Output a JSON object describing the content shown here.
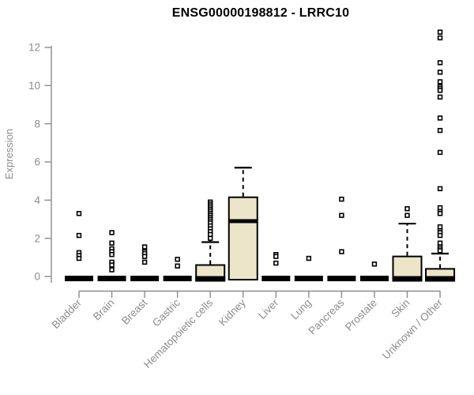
{
  "title": "ENSG00000198812 - LRRC10",
  "colors": {
    "background": "#ffffff",
    "box_fill": "#ece5c9",
    "box_stroke": "#000000",
    "median": "#000000",
    "whisker": "#000000",
    "outlier_stroke": "#000000",
    "outlier_fill": "#ffffff",
    "axis": "#8c8c8c",
    "tick_label": "#8c8c8c",
    "title_color": "#000000"
  },
  "chart_data": {
    "type": "boxplot",
    "title": "ENSG00000198812 - LRRC10",
    "xlabel": "",
    "ylabel": "Expression",
    "ylim": [
      0,
      12
    ],
    "yticks": [
      0,
      2,
      4,
      6,
      8,
      10,
      12
    ],
    "grid": false,
    "legend": "none",
    "categories": [
      "Bladder",
      "Brain",
      "Breast",
      "Gastric",
      "Hematopoietic cells",
      "Kidney",
      "Liver",
      "Lung",
      "Pancreas",
      "Prostate",
      "Skin",
      "Unknown / Other"
    ],
    "boxes": [
      {
        "name": "Bladder",
        "q1": 0,
        "median": 0,
        "q3": 0,
        "whisker_low": 0,
        "whisker_high": 0,
        "cap_overshoot": false,
        "outliers": [
          3.3,
          2.15,
          1.25,
          1.1,
          0.95
        ]
      },
      {
        "name": "Brain",
        "q1": 0,
        "median": 0,
        "q3": 0,
        "whisker_low": 0,
        "whisker_high": 0,
        "cap_overshoot": false,
        "outliers": [
          2.3,
          1.75,
          1.45,
          1.3,
          1.15,
          0.75,
          0.6,
          0.35
        ]
      },
      {
        "name": "Breast",
        "q1": 0,
        "median": 0,
        "q3": 0,
        "whisker_low": 0,
        "whisker_high": 0,
        "cap_overshoot": false,
        "outliers": [
          1.55,
          1.3,
          1.2,
          1.05,
          0.75
        ]
      },
      {
        "name": "Gastric",
        "q1": 0,
        "median": 0,
        "q3": 0,
        "whisker_low": 0,
        "whisker_high": 0,
        "cap_overshoot": false,
        "outliers": [
          0.9,
          0.55
        ]
      },
      {
        "name": "Hematopoietic cells",
        "q1": 0,
        "median": 0,
        "q3": 0.6,
        "whisker_low": 0,
        "whisker_high": 1.8,
        "cap_overshoot": true,
        "outliers": [
          3.9,
          3.8,
          3.7,
          3.6,
          3.5,
          3.4,
          3.3,
          3.2,
          3.1,
          3.0,
          2.9,
          2.8,
          2.65,
          2.5,
          2.35,
          2.2,
          2.0
        ]
      },
      {
        "name": "Kidney",
        "q1": 0,
        "median": 2.9,
        "q3": 4.15,
        "whisker_low": 0,
        "whisker_high": 5.7,
        "cap_overshoot": false,
        "outliers": []
      },
      {
        "name": "Liver",
        "q1": 0,
        "median": 0,
        "q3": 0,
        "whisker_low": 0,
        "whisker_high": 0,
        "cap_overshoot": false,
        "outliers": [
          1.15,
          1.05,
          0.7
        ]
      },
      {
        "name": "Lung",
        "q1": 0,
        "median": 0,
        "q3": 0,
        "whisker_low": 0,
        "whisker_high": 0,
        "cap_overshoot": false,
        "outliers": [
          0.95
        ]
      },
      {
        "name": "Pancreas",
        "q1": 0,
        "median": 0,
        "q3": 0,
        "whisker_low": 0,
        "whisker_high": 0,
        "cap_overshoot": false,
        "outliers": [
          4.05,
          3.2,
          1.3
        ]
      },
      {
        "name": "Prostate",
        "q1": 0,
        "median": 0,
        "q3": 0,
        "whisker_low": 0,
        "whisker_high": 0,
        "cap_overshoot": false,
        "outliers": [
          0.65
        ]
      },
      {
        "name": "Skin",
        "q1": 0,
        "median": 0,
        "q3": 1.05,
        "whisker_low": 0,
        "whisker_high": 2.77,
        "cap_overshoot": false,
        "outliers": [
          3.55,
          3.2
        ]
      },
      {
        "name": "Unknown / Other",
        "q1": 0,
        "median": 0,
        "q3": 0.4,
        "whisker_low": 0,
        "whisker_high": 1.2,
        "cap_overshoot": true,
        "outliers": [
          12.8,
          12.5,
          11.2,
          10.7,
          10.2,
          9.95,
          9.85,
          9.75,
          9.4,
          8.3,
          7.65,
          6.5,
          4.6,
          3.6,
          3.4,
          3.3,
          2.6,
          2.4,
          2.3,
          2.15,
          1.75,
          1.55,
          1.45,
          1.35
        ]
      }
    ]
  }
}
